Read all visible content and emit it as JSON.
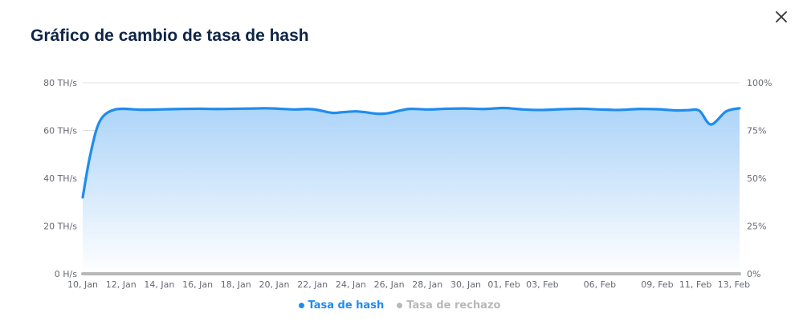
{
  "modal": {
    "title": "Gráfico de cambio de tasa de hash",
    "close_icon": "close-icon"
  },
  "colors": {
    "title": "#0f2447",
    "hash_line": "#1e8cf0",
    "reject_line": "#b8b8b8",
    "area_top": "#a9d2f8",
    "area_bottom": "#ffffff",
    "grid": "#dcdfe4",
    "axis_text": "#666a73"
  },
  "chart_data": {
    "type": "area",
    "title": "",
    "xlabel": "",
    "ylabel": "",
    "y_left": {
      "ylim": [
        0,
        80
      ],
      "ticks": [
        "0 H/s",
        "20 TH/s",
        "40 TH/s",
        "60 TH/s",
        "80 TH/s"
      ]
    },
    "y_right": {
      "ylim": [
        0,
        100
      ],
      "ticks": [
        "0%",
        "25%",
        "50%",
        "75%",
        "100%"
      ]
    },
    "grid": true,
    "legend": "bottom-center",
    "x_ticks": [
      "10, Jan",
      "12, Jan",
      "14, Jan",
      "16, Jan",
      "18, Jan",
      "20, Jan",
      "22, Jan",
      "24, Jan",
      "26, Jan",
      "28, Jan",
      "30, Jan",
      "01, Feb",
      "03, Feb",
      "06, Feb",
      "09, Feb",
      "11, Feb",
      "13, Feb"
    ],
    "x_tick_days": [
      0,
      2,
      4,
      6,
      8,
      10,
      12,
      14,
      16,
      18,
      20,
      22,
      24,
      27,
      30,
      32,
      34
    ],
    "series": [
      {
        "name": "Tasa de hash",
        "axis": "left",
        "days": [
          0,
          0.4,
          0.9,
          1.7,
          3,
          4,
          5,
          6,
          7,
          8,
          9,
          9.5,
          10,
          11,
          11.7,
          12.2,
          13,
          13.5,
          14.2,
          14.7,
          15.4,
          16,
          17,
          18,
          19,
          20,
          21,
          22,
          23,
          24,
          25,
          26,
          27,
          28,
          29,
          30,
          31,
          31.6,
          32.2,
          32.8,
          33.6,
          34.3
        ],
        "values": [
          32,
          50,
          64,
          68.8,
          68.7,
          68.8,
          69,
          69.1,
          69,
          69.1,
          69.2,
          69.3,
          69.2,
          68.8,
          69,
          68.7,
          67.4,
          67.6,
          68,
          67.7,
          67,
          67.3,
          69,
          68.8,
          69.1,
          69.2,
          69,
          69.4,
          68.8,
          68.6,
          68.9,
          69.1,
          68.8,
          68.6,
          69,
          68.9,
          68.4,
          68.5,
          68.3,
          62.5,
          68,
          69.3
        ]
      },
      {
        "name": "Tasa de rechazo",
        "axis": "right",
        "days": [
          0,
          34.3
        ],
        "values": [
          0,
          0
        ]
      }
    ]
  },
  "legend": {
    "items": [
      {
        "label": "Tasa de hash",
        "color": "#1e8cf0",
        "active": true
      },
      {
        "label": "Tasa de rechazo",
        "color": "#b8b8b8",
        "active": false
      }
    ]
  }
}
